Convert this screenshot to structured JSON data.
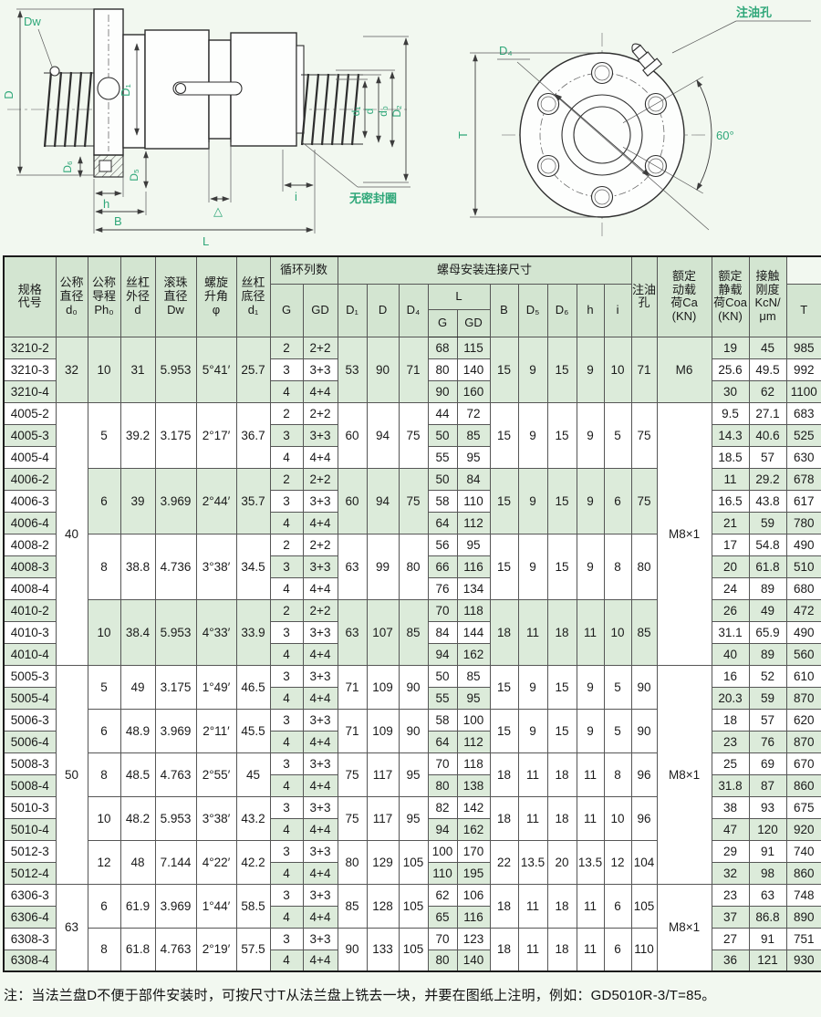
{
  "drawings": {
    "left": {
      "dw": "Dw",
      "D": "D",
      "D1": "D₁",
      "d1": "d₁",
      "d": "d",
      "d0": "d₀",
      "D2": "D₂",
      "D6": "D₆",
      "h": "h",
      "D5": "D₅",
      "B": "B",
      "delta": "△",
      "i": "i",
      "L": "L",
      "no_seal": "无密封圈"
    },
    "right": {
      "d4": "D₄",
      "oil": "注油孔",
      "angle": "60°",
      "T": "T"
    }
  },
  "table": {
    "header": {
      "spec": "规格\n代号",
      "d0": "公称\n直径\nd₀",
      "ph": "公称\n导程\nPh₀",
      "d": "丝杠\n外径\nd",
      "dw": "滚珠\n直径\nDw",
      "phi": "螺旋\n升角\nφ",
      "d1": "丝杠\n底径\nd₁",
      "cycles": "循环列数",
      "g": "G",
      "gd": "GD",
      "nut": "螺母安装连接尺寸",
      "D1": "D₁",
      "D": "D",
      "D4": "D₄",
      "L": "L",
      "lg": "G",
      "lgd": "GD",
      "B": "B",
      "D5": "D₅",
      "D6": "D₆",
      "h": "h",
      "i": "i",
      "T": "T",
      "oil": "注油孔",
      "ca": "额定\n动载\n荷Ca\n(KN)",
      "coa": "额定\n静载\n荷Coa\n(KN)",
      "k": "接触\n刚度\nKcN/\nμm"
    },
    "rows": [
      [
        "3210-2",
        {
          "t": "32",
          "rs": 3
        },
        {
          "t": "10",
          "rs": 3
        },
        {
          "t": "31",
          "rs": 3
        },
        {
          "t": "5.953",
          "rs": 3
        },
        {
          "t": "5°41′",
          "rs": 3
        },
        {
          "t": "25.7",
          "rs": 3
        },
        "2",
        "2+2",
        {
          "t": "53",
          "rs": 3
        },
        {
          "t": "90",
          "rs": 3
        },
        {
          "t": "71",
          "rs": 3
        },
        "68",
        "115",
        {
          "t": "15",
          "rs": 3
        },
        {
          "t": "9",
          "rs": 3
        },
        {
          "t": "15",
          "rs": 3
        },
        {
          "t": "9",
          "rs": 3
        },
        {
          "t": "10",
          "rs": 3
        },
        {
          "t": "71",
          "rs": 3
        },
        {
          "t": "M6",
          "rs": 3
        },
        "19",
        "45",
        "985"
      ],
      [
        "3210-3",
        "3",
        "3+3",
        "80",
        "140",
        "25.6",
        "49.5",
        "992"
      ],
      [
        "3210-4",
        "4",
        "4+4",
        "90",
        "160",
        "30",
        "62",
        "1100"
      ],
      [
        "4005-2",
        {
          "t": "40",
          "rs": 12
        },
        {
          "t": "5",
          "rs": 3
        },
        {
          "t": "39.2",
          "rs": 3
        },
        {
          "t": "3.175",
          "rs": 3
        },
        {
          "t": "2°17′",
          "rs": 3
        },
        {
          "t": "36.7",
          "rs": 3
        },
        "2",
        "2+2",
        {
          "t": "60",
          "rs": 3
        },
        {
          "t": "94",
          "rs": 3
        },
        {
          "t": "75",
          "rs": 3
        },
        "44",
        "72",
        {
          "t": "15",
          "rs": 3
        },
        {
          "t": "9",
          "rs": 3
        },
        {
          "t": "15",
          "rs": 3
        },
        {
          "t": "9",
          "rs": 3
        },
        {
          "t": "5",
          "rs": 3
        },
        {
          "t": "75",
          "rs": 3
        },
        {
          "t": "M8×1",
          "rs": 12
        },
        "9.5",
        "27.1",
        "683"
      ],
      [
        "4005-3",
        "3",
        "3+3",
        "50",
        "85",
        "14.3",
        "40.6",
        "525"
      ],
      [
        "4005-4",
        "4",
        "4+4",
        "55",
        "95",
        "18.5",
        "57",
        "630"
      ],
      [
        "4006-2",
        {
          "t": "6",
          "rs": 3
        },
        {
          "t": "39",
          "rs": 3
        },
        {
          "t": "3.969",
          "rs": 3
        },
        {
          "t": "2°44′",
          "rs": 3
        },
        {
          "t": "35.7",
          "rs": 3
        },
        "2",
        "2+2",
        {
          "t": "60",
          "rs": 3
        },
        {
          "t": "94",
          "rs": 3
        },
        {
          "t": "75",
          "rs": 3
        },
        "50",
        "84",
        {
          "t": "15",
          "rs": 3
        },
        {
          "t": "9",
          "rs": 3
        },
        {
          "t": "15",
          "rs": 3
        },
        {
          "t": "9",
          "rs": 3
        },
        {
          "t": "6",
          "rs": 3
        },
        {
          "t": "75",
          "rs": 3
        },
        "11",
        "29.2",
        "678"
      ],
      [
        "4006-3",
        "3",
        "3+3",
        "58",
        "110",
        "16.5",
        "43.8",
        "617"
      ],
      [
        "4006-4",
        "4",
        "4+4",
        "64",
        "112",
        "21",
        "59",
        "780"
      ],
      [
        "4008-2",
        {
          "t": "8",
          "rs": 3
        },
        {
          "t": "38.8",
          "rs": 3
        },
        {
          "t": "4.736",
          "rs": 3
        },
        {
          "t": "3°38′",
          "rs": 3
        },
        {
          "t": "34.5",
          "rs": 3
        },
        "2",
        "2+2",
        {
          "t": "63",
          "rs": 3
        },
        {
          "t": "99",
          "rs": 3
        },
        {
          "t": "80",
          "rs": 3
        },
        "56",
        "95",
        {
          "t": "15",
          "rs": 3
        },
        {
          "t": "9",
          "rs": 3
        },
        {
          "t": "15",
          "rs": 3
        },
        {
          "t": "9",
          "rs": 3
        },
        {
          "t": "8",
          "rs": 3
        },
        {
          "t": "80",
          "rs": 3
        },
        "17",
        "54.8",
        "490"
      ],
      [
        "4008-3",
        "3",
        "3+3",
        "66",
        "116",
        "20",
        "61.8",
        "510"
      ],
      [
        "4008-4",
        "4",
        "4+4",
        "76",
        "134",
        "24",
        "89",
        "680"
      ],
      [
        "4010-2",
        {
          "t": "10",
          "rs": 3
        },
        {
          "t": "38.4",
          "rs": 3
        },
        {
          "t": "5.953",
          "rs": 3
        },
        {
          "t": "4°33′",
          "rs": 3
        },
        {
          "t": "33.9",
          "rs": 3
        },
        "2",
        "2+2",
        {
          "t": "63",
          "rs": 3
        },
        {
          "t": "107",
          "rs": 3
        },
        {
          "t": "85",
          "rs": 3
        },
        "70",
        "118",
        {
          "t": "18",
          "rs": 3
        },
        {
          "t": "11",
          "rs": 3
        },
        {
          "t": "18",
          "rs": 3
        },
        {
          "t": "11",
          "rs": 3
        },
        {
          "t": "10",
          "rs": 3
        },
        {
          "t": "85",
          "rs": 3
        },
        "26",
        "49",
        "472"
      ],
      [
        "4010-3",
        "3",
        "3+3",
        "84",
        "144",
        "31.1",
        "65.9",
        "490"
      ],
      [
        "4010-4",
        "4",
        "4+4",
        "94",
        "162",
        "40",
        "89",
        "560"
      ],
      [
        "5005-3",
        {
          "t": "50",
          "rs": 10
        },
        {
          "t": "5",
          "rs": 2
        },
        {
          "t": "49",
          "rs": 2
        },
        {
          "t": "3.175",
          "rs": 2
        },
        {
          "t": "1°49′",
          "rs": 2
        },
        {
          "t": "46.5",
          "rs": 2
        },
        "3",
        "3+3",
        {
          "t": "71",
          "rs": 2
        },
        {
          "t": "109",
          "rs": 2
        },
        {
          "t": "90",
          "rs": 2
        },
        "50",
        "85",
        {
          "t": "15",
          "rs": 2
        },
        {
          "t": "9",
          "rs": 2
        },
        {
          "t": "15",
          "rs": 2
        },
        {
          "t": "9",
          "rs": 2
        },
        {
          "t": "5",
          "rs": 2
        },
        {
          "t": "90",
          "rs": 2
        },
        {
          "t": "M8×1",
          "rs": 10
        },
        "16",
        "52",
        "610"
      ],
      [
        "5005-4",
        "4",
        "4+4",
        "55",
        "95",
        "20.3",
        "59",
        "870"
      ],
      [
        "5006-3",
        {
          "t": "6",
          "rs": 2
        },
        {
          "t": "48.9",
          "rs": 2
        },
        {
          "t": "3.969",
          "rs": 2
        },
        {
          "t": "2°11′",
          "rs": 2
        },
        {
          "t": "45.5",
          "rs": 2
        },
        "3",
        "3+3",
        {
          "t": "71",
          "rs": 2
        },
        {
          "t": "109",
          "rs": 2
        },
        {
          "t": "90",
          "rs": 2
        },
        "58",
        "100",
        {
          "t": "15",
          "rs": 2
        },
        {
          "t": "9",
          "rs": 2
        },
        {
          "t": "15",
          "rs": 2
        },
        {
          "t": "9",
          "rs": 2
        },
        {
          "t": "5",
          "rs": 2
        },
        {
          "t": "90",
          "rs": 2
        },
        "18",
        "57",
        "620"
      ],
      [
        "5006-4",
        "4",
        "4+4",
        "64",
        "112",
        "23",
        "76",
        "870"
      ],
      [
        "5008-3",
        {
          "t": "8",
          "rs": 2
        },
        {
          "t": "48.5",
          "rs": 2
        },
        {
          "t": "4.763",
          "rs": 2
        },
        {
          "t": "2°55′",
          "rs": 2
        },
        {
          "t": "45",
          "rs": 2
        },
        "3",
        "3+3",
        {
          "t": "75",
          "rs": 2
        },
        {
          "t": "117",
          "rs": 2
        },
        {
          "t": "95",
          "rs": 2
        },
        "70",
        "118",
        {
          "t": "18",
          "rs": 2
        },
        {
          "t": "11",
          "rs": 2
        },
        {
          "t": "18",
          "rs": 2
        },
        {
          "t": "11",
          "rs": 2
        },
        {
          "t": "8",
          "rs": 2
        },
        {
          "t": "96",
          "rs": 2
        },
        "25",
        "69",
        "670"
      ],
      [
        "5008-4",
        "4",
        "4+4",
        "80",
        "138",
        "31.8",
        "87",
        "860"
      ],
      [
        "5010-3",
        {
          "t": "10",
          "rs": 2
        },
        {
          "t": "48.2",
          "rs": 2
        },
        {
          "t": "5.953",
          "rs": 2
        },
        {
          "t": "3°38′",
          "rs": 2
        },
        {
          "t": "43.2",
          "rs": 2
        },
        "3",
        "3+3",
        {
          "t": "75",
          "rs": 2
        },
        {
          "t": "117",
          "rs": 2
        },
        {
          "t": "95",
          "rs": 2
        },
        "82",
        "142",
        {
          "t": "18",
          "rs": 2
        },
        {
          "t": "11",
          "rs": 2
        },
        {
          "t": "18",
          "rs": 2
        },
        {
          "t": "11",
          "rs": 2
        },
        {
          "t": "10",
          "rs": 2
        },
        {
          "t": "96",
          "rs": 2
        },
        "38",
        "93",
        "675"
      ],
      [
        "5010-4",
        "4",
        "4+4",
        "94",
        "162",
        "47",
        "120",
        "920"
      ],
      [
        "5012-3",
        {
          "t": "12",
          "rs": 2
        },
        {
          "t": "48",
          "rs": 2
        },
        {
          "t": "7.144",
          "rs": 2
        },
        {
          "t": "4°22′",
          "rs": 2
        },
        {
          "t": "42.2",
          "rs": 2
        },
        "3",
        "3+3",
        {
          "t": "80",
          "rs": 2
        },
        {
          "t": "129",
          "rs": 2
        },
        {
          "t": "105",
          "rs": 2
        },
        "100",
        "170",
        {
          "t": "22",
          "rs": 2
        },
        {
          "t": "13.5",
          "rs": 2
        },
        {
          "t": "20",
          "rs": 2
        },
        {
          "t": "13.5",
          "rs": 2
        },
        {
          "t": "12",
          "rs": 2
        },
        {
          "t": "104",
          "rs": 2
        },
        "29",
        "91",
        "740"
      ],
      [
        "5012-4",
        "4",
        "4+4",
        "110",
        "195",
        "32",
        "98",
        "860"
      ],
      [
        "6306-3",
        {
          "t": "63",
          "rs": 4
        },
        {
          "t": "6",
          "rs": 2
        },
        {
          "t": "61.9",
          "rs": 2
        },
        {
          "t": "3.969",
          "rs": 2
        },
        {
          "t": "1°44′",
          "rs": 2
        },
        {
          "t": "58.5",
          "rs": 2
        },
        "3",
        "3+3",
        {
          "t": "85",
          "rs": 2
        },
        {
          "t": "128",
          "rs": 2
        },
        {
          "t": "105",
          "rs": 2
        },
        "62",
        "106",
        {
          "t": "18",
          "rs": 2
        },
        {
          "t": "11",
          "rs": 2
        },
        {
          "t": "18",
          "rs": 2
        },
        {
          "t": "11",
          "rs": 2
        },
        {
          "t": "6",
          "rs": 2
        },
        {
          "t": "105",
          "rs": 2
        },
        {
          "t": "M8×1",
          "rs": 4
        },
        "23",
        "63",
        "748"
      ],
      [
        "6306-4",
        "4",
        "4+4",
        "65",
        "116",
        "37",
        "86.8",
        "890"
      ],
      [
        "6308-3",
        {
          "t": "8",
          "rs": 2
        },
        {
          "t": "61.8",
          "rs": 2
        },
        {
          "t": "4.763",
          "rs": 2
        },
        {
          "t": "2°19′",
          "rs": 2
        },
        {
          "t": "57.5",
          "rs": 2
        },
        "3",
        "3+3",
        {
          "t": "90",
          "rs": 2
        },
        {
          "t": "133",
          "rs": 2
        },
        {
          "t": "105",
          "rs": 2
        },
        "70",
        "123",
        {
          "t": "18",
          "rs": 2
        },
        {
          "t": "11",
          "rs": 2
        },
        {
          "t": "18",
          "rs": 2
        },
        {
          "t": "11",
          "rs": 2
        },
        {
          "t": "6",
          "rs": 2
        },
        {
          "t": "110",
          "rs": 2
        },
        "27",
        "91",
        "751"
      ],
      [
        "6308-4",
        "4",
        "4+4",
        "80",
        "140",
        "36",
        "121",
        "930"
      ]
    ],
    "group_start_rows": [
      0,
      3,
      6,
      9,
      12,
      15,
      17,
      19,
      21,
      23,
      25,
      27
    ]
  },
  "footnote": "注：当法兰盘D不便于部件安装时，可按尺寸T从法兰盘上铣去一块，并要在图纸上注明，例如：GD5010R-3/T=85。",
  "colors": {
    "stripe_green": "#dcebda",
    "header_green": "#d3e5d1",
    "label_green": "#2fa779",
    "page_bg": "#f2f8f0"
  }
}
